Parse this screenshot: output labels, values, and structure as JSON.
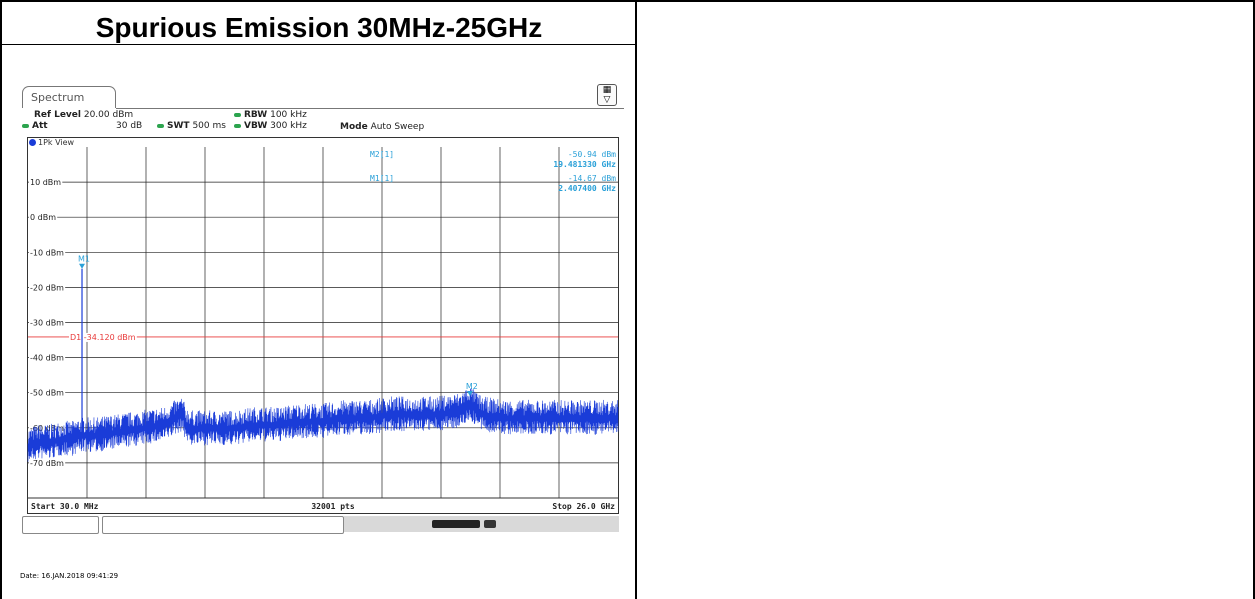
{
  "document": {
    "heading": "Spurious Emission 30MHz-25GHz",
    "date_line": "Date: 16.JAN.2018  09:41:29"
  },
  "analyzer": {
    "tab_label": "Spectrum",
    "ref_level_label": "Ref Level",
    "ref_level_value": "20.00 dBm",
    "att_label": "Att",
    "att_value": "30 dB",
    "swt_label": "SWT",
    "swt_value": "500 ms",
    "rbw_label": "RBW",
    "rbw_value": "100 kHz",
    "vbw_label": "VBW",
    "vbw_value": "300 kHz",
    "mode_label": "Mode",
    "mode_value": "Auto Sweep",
    "view_label": "1Pk View",
    "icon_settings": "table-settings-icon",
    "indicator_color": "#2ca44e",
    "trace_color": "#1a3cd8",
    "marker_color": "#29a0d8",
    "line_color": "#e83a3a"
  },
  "chart_data": {
    "type": "line",
    "title": "",
    "xlabel": "",
    "ylabel": "",
    "x_unit": "GHz",
    "xlim": [
      0.03,
      26.0
    ],
    "ylim": [
      -80,
      20
    ],
    "y_tick_labels": [
      "10 dBm",
      "0 dBm",
      "-10 dBm",
      "-20 dBm",
      "-30 dBm",
      "-40 dBm",
      "-50 dBm",
      "-60 dBm",
      "-70 dBm"
    ],
    "y_tick_values": [
      10,
      0,
      -10,
      -20,
      -30,
      -40,
      -50,
      -60,
      -70
    ],
    "x_gridlines": 10,
    "start_label": "Start 30.0 MHz",
    "stop_label": "Stop 26.0 GHz",
    "points_label": "32001 pts",
    "display_line": {
      "name": "D1",
      "label": "D1  -34.120 dBm",
      "value": -34.12
    },
    "markers": [
      {
        "name": "M1",
        "x": 2.4074,
        "y": -14.67,
        "label": "M1[1]",
        "value_text": "-14.67 dBm",
        "freq_text": "2.407400 GHz"
      },
      {
        "name": "M2",
        "x": 19.48133,
        "y": -50.94,
        "label": "M2[1]",
        "value_text": "-50.94 dBm",
        "freq_text": "19.481330 GHz"
      }
    ],
    "series": [
      {
        "x": [
          0.03,
          0.5,
          1.0,
          1.5,
          2.0,
          2.3,
          2.4074,
          2.5,
          3.0,
          4.0,
          5.0,
          6.0,
          6.8,
          7.0,
          7.2,
          8.0,
          9.0,
          10.0,
          11.0,
          12.0,
          13.0,
          14.0,
          15.0,
          16.0,
          17.0,
          18.0,
          19.0,
          19.48133,
          20.0,
          21.0,
          22.0,
          23.0,
          24.0,
          25.0,
          26.0
        ],
        "values": [
          -63,
          -62,
          -62,
          -61,
          -61,
          -60,
          -14.67,
          -60,
          -60,
          -59,
          -58,
          -57,
          -54,
          -57,
          -58,
          -58,
          -58,
          -57,
          -57,
          -56,
          -56,
          -55,
          -55,
          -54,
          -54,
          -54,
          -53,
          -50.94,
          -54,
          -55,
          -55,
          -55,
          -55,
          -55,
          -55
        ]
      }
    ]
  }
}
